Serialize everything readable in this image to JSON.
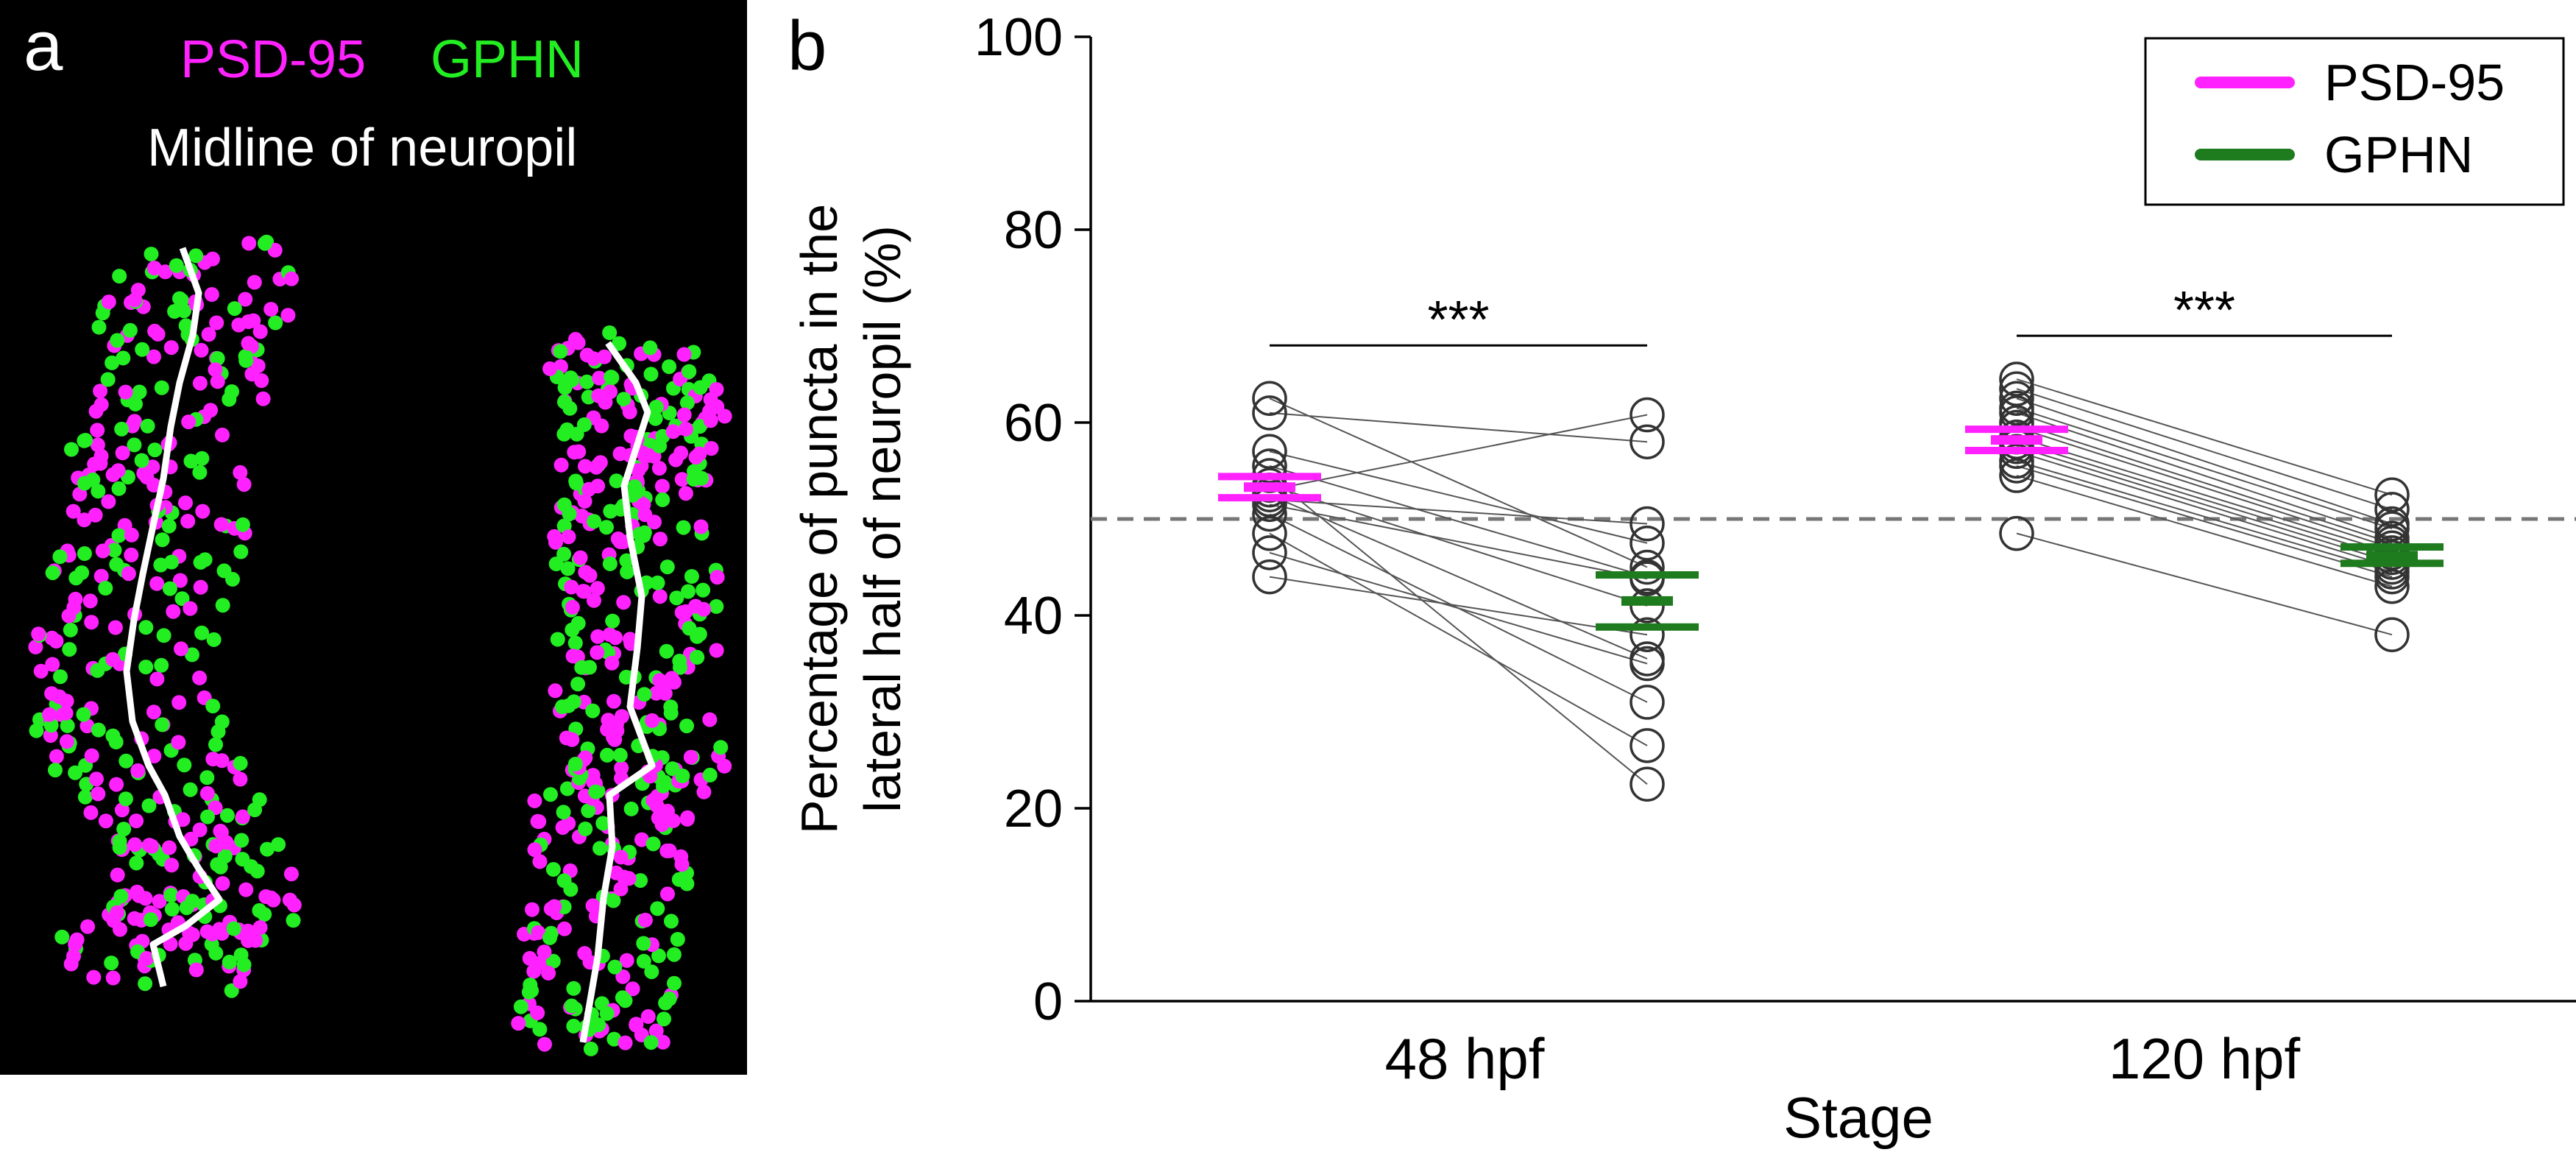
{
  "panels": {
    "a": {
      "letter": "a",
      "legend_psd95": "PSD-95",
      "legend_gphn": "GPHN",
      "midline_label": "Midline of neuropil",
      "colors": {
        "background": "#000000",
        "psd95": "#ff22ff",
        "gphn": "#22ee22",
        "midline": "#ffffff"
      }
    },
    "b": {
      "letter": "b"
    }
  },
  "chart_data": {
    "type": "scatter",
    "title": "",
    "xlabel": "Stage",
    "ylabel_line1": "Percentage of puncta in the",
    "ylabel_line2": "lateral half of neuropil (%)",
    "ylim": [
      0,
      100
    ],
    "yticks": [
      0,
      20,
      40,
      60,
      80,
      100
    ],
    "categories": [
      "48 hpf",
      "120 hpf"
    ],
    "reference_line": 50,
    "legend": {
      "position": "top-right",
      "entries": [
        {
          "label": "PSD-95",
          "color": "#ff22ff"
        },
        {
          "label": "GPHN",
          "color": "#1e7b1e"
        }
      ]
    },
    "significance": [
      {
        "category": "48 hpf",
        "label": "***",
        "y": 68
      },
      {
        "category": "120 hpf",
        "label": "***",
        "y": 69
      }
    ],
    "groups": [
      {
        "category": "48 hpf",
        "psd95": [
          62.5,
          61,
          57,
          55.5,
          54.5,
          53.5,
          53,
          52.5,
          52,
          51.5,
          50.5,
          48.5,
          46.5,
          44
        ],
        "gphn": [
          45,
          58,
          47.5,
          44,
          22.5,
          41,
          60.8,
          35.5,
          49.5,
          43.8,
          31,
          26.5,
          35,
          38
        ],
        "psd95_mean": 53.3,
        "psd95_sem_low": 52.2,
        "psd95_sem_high": 54.4,
        "gphn_mean": 41.5,
        "gphn_sem_low": 38.8,
        "gphn_sem_high": 44.2
      },
      {
        "category": "120 hpf",
        "psd95": [
          64.5,
          63.5,
          62.5,
          61.5,
          61,
          60,
          59.5,
          58.5,
          58,
          57.5,
          57,
          56,
          55.5,
          54.5,
          48.5
        ],
        "gphn": [
          52.5,
          51,
          49.5,
          49,
          48,
          47.5,
          47,
          46.5,
          46,
          45.5,
          45,
          44.5,
          44,
          43,
          38
        ],
        "psd95_mean": 58.2,
        "psd95_sem_low": 57.1,
        "psd95_sem_high": 59.3,
        "gphn_mean": 46.2,
        "gphn_sem_low": 45.4,
        "gphn_sem_high": 47.1
      }
    ]
  }
}
